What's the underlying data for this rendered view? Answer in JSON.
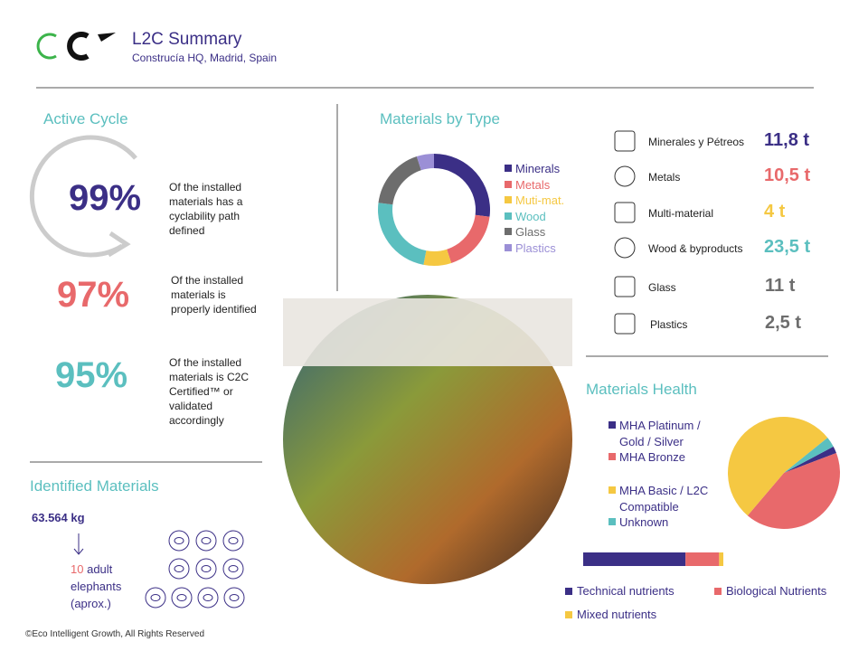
{
  "header": {
    "title": "L2C Summary",
    "subtitle": "Construcía HQ, Madrid, Spain"
  },
  "active_cycle": {
    "title": "Active Cycle",
    "stats": [
      {
        "value": "99%",
        "text": "Of the installed materials has a cyclability path defined"
      },
      {
        "value": "97%",
        "text": "Of the installed materials is properly identified"
      },
      {
        "value": "95%",
        "text": "Of the installed materials is C2C Certified™ or validated accordingly"
      }
    ]
  },
  "identified_materials": {
    "title": "Identified Materials",
    "total": "63.564 kg",
    "elephants": "10",
    "elephants_text": "adult elephants (aprox.)"
  },
  "materials_list": [
    {
      "name": "Minerales y Pétreos",
      "amount": "11,8 t"
    },
    {
      "name": "Metals",
      "amount": "10,5 t"
    },
    {
      "name": "Multi-material",
      "amount": "4 t"
    },
    {
      "name": "Wood & byproducts",
      "amount": "23,5 t"
    },
    {
      "name": "Glass",
      "amount": "11 t"
    },
    {
      "name": "Plastics",
      "amount": "2,5 t"
    }
  ],
  "chart_data": [
    {
      "type": "donut",
      "title": "Materials by Type",
      "categories": [
        "Minerals",
        "Metals",
        "Muti-mat.",
        "Wood",
        "Glass",
        "Plastics"
      ],
      "values": [
        27,
        18,
        8,
        24,
        18,
        5
      ],
      "colors": [
        "#3b2f86",
        "#e8696b",
        "#f5c842",
        "#5bbfbf",
        "#6d6d6d",
        "#9b8fd6"
      ]
    },
    {
      "type": "pie",
      "title": "Materials Health",
      "categories": [
        "MHA Platinum / Gold / Silver",
        "MHA Bronze",
        "MHA Basic / L2C Compatible",
        "Unknown"
      ],
      "values": [
        2,
        42,
        53,
        3
      ],
      "colors": [
        "#3b2f86",
        "#e8696b",
        "#f5c842",
        "#5bbfbf"
      ]
    },
    {
      "type": "stacked_bar",
      "series": [
        {
          "name": "Technical nutrients",
          "color": "#3b2f86",
          "values": [
            73
          ]
        },
        {
          "name": "Biological Nutrients",
          "color": "#e8696b",
          "values": [
            24
          ]
        },
        {
          "name": "Mixed nutrients",
          "color": "#f5c842",
          "values": [
            3
          ]
        }
      ]
    }
  ],
  "footer": "©Eco Intelligent Growth, All Rights Reserved"
}
